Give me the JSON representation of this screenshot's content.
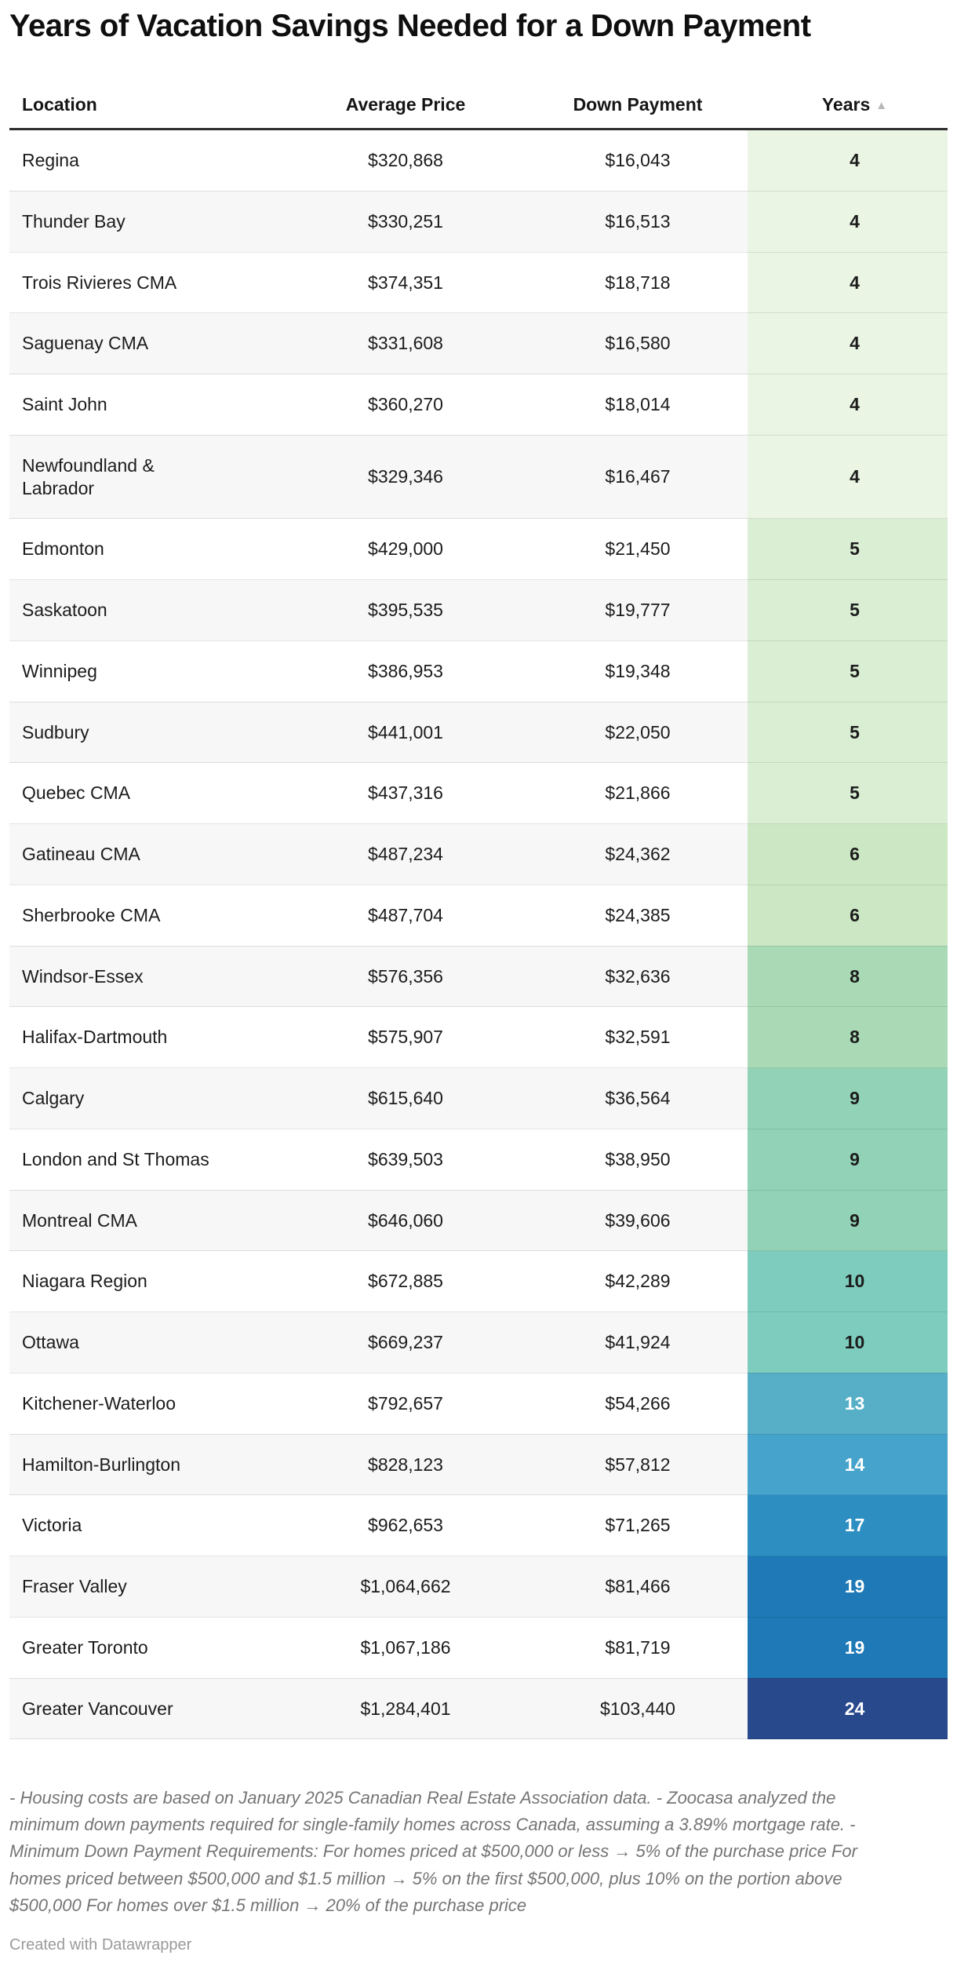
{
  "title": "Years of Vacation Savings Needed for a Down Payment",
  "chart_data": {
    "type": "table",
    "title": "Years of Vacation Savings Needed for a Down Payment",
    "columns": [
      "Location",
      "Average Price",
      "Down Payment",
      "Years"
    ],
    "sort": {
      "column": "Years",
      "direction": "ascending",
      "indicator": "▲"
    },
    "years_color_scale": {
      "4": "#eaf5e4",
      "5": "#d9eed3",
      "6": "#cbe7c3",
      "8": "#a9dab5",
      "9": "#92d2b7",
      "10": "#7eccbe",
      "13": "#56afc6",
      "14": "#46a3cb",
      "17": "#2d8ec2",
      "19": "#1e79b6",
      "24": "#28498c"
    },
    "rows": [
      {
        "location": "Regina",
        "average_price": "$320,868",
        "down_payment": "$16,043",
        "years": "4",
        "color": "#eaf5e4",
        "text": "#1c1c1c"
      },
      {
        "location": "Thunder Bay",
        "average_price": "$330,251",
        "down_payment": "$16,513",
        "years": "4",
        "color": "#eaf5e4",
        "text": "#1c1c1c"
      },
      {
        "location": "Trois Rivieres CMA",
        "average_price": "$374,351",
        "down_payment": "$18,718",
        "years": "4",
        "color": "#eaf5e4",
        "text": "#1c1c1c"
      },
      {
        "location": "Saguenay CMA",
        "average_price": "$331,608",
        "down_payment": "$16,580",
        "years": "4",
        "color": "#eaf5e4",
        "text": "#1c1c1c"
      },
      {
        "location": "Saint John",
        "average_price": "$360,270",
        "down_payment": "$18,014",
        "years": "4",
        "color": "#eaf5e4",
        "text": "#1c1c1c"
      },
      {
        "location": "Newfoundland & Labrador",
        "average_price": "$329,346",
        "down_payment": "$16,467",
        "years": "4",
        "color": "#eaf5e4",
        "text": "#1c1c1c"
      },
      {
        "location": "Edmonton",
        "average_price": "$429,000",
        "down_payment": "$21,450",
        "years": "5",
        "color": "#d9eed3",
        "text": "#1c1c1c"
      },
      {
        "location": "Saskatoon",
        "average_price": "$395,535",
        "down_payment": "$19,777",
        "years": "5",
        "color": "#d9eed3",
        "text": "#1c1c1c"
      },
      {
        "location": "Winnipeg",
        "average_price": "$386,953",
        "down_payment": "$19,348",
        "years": "5",
        "color": "#d9eed3",
        "text": "#1c1c1c"
      },
      {
        "location": "Sudbury",
        "average_price": "$441,001",
        "down_payment": "$22,050",
        "years": "5",
        "color": "#d9eed3",
        "text": "#1c1c1c"
      },
      {
        "location": "Quebec CMA",
        "average_price": "$437,316",
        "down_payment": "$21,866",
        "years": "5",
        "color": "#d9eed3",
        "text": "#1c1c1c"
      },
      {
        "location": "Gatineau CMA",
        "average_price": "$487,234",
        "down_payment": "$24,362",
        "years": "6",
        "color": "#cbe7c3",
        "text": "#1c1c1c"
      },
      {
        "location": "Sherbrooke CMA",
        "average_price": "$487,704",
        "down_payment": "$24,385",
        "years": "6",
        "color": "#cbe7c3",
        "text": "#1c1c1c"
      },
      {
        "location": "Windsor-Essex",
        "average_price": "$576,356",
        "down_payment": "$32,636",
        "years": "8",
        "color": "#a9dab5",
        "text": "#1c1c1c"
      },
      {
        "location": "Halifax-Dartmouth",
        "average_price": "$575,907",
        "down_payment": "$32,591",
        "years": "8",
        "color": "#a9dab5",
        "text": "#1c1c1c"
      },
      {
        "location": "Calgary",
        "average_price": "$615,640",
        "down_payment": "$36,564",
        "years": "9",
        "color": "#92d2b7",
        "text": "#1c1c1c"
      },
      {
        "location": "London and St Thomas",
        "average_price": "$639,503",
        "down_payment": "$38,950",
        "years": "9",
        "color": "#92d2b7",
        "text": "#1c1c1c"
      },
      {
        "location": "Montreal CMA",
        "average_price": "$646,060",
        "down_payment": "$39,606",
        "years": "9",
        "color": "#92d2b7",
        "text": "#1c1c1c"
      },
      {
        "location": "Niagara Region",
        "average_price": "$672,885",
        "down_payment": "$42,289",
        "years": "10",
        "color": "#7eccbe",
        "text": "#1c1c1c"
      },
      {
        "location": "Ottawa",
        "average_price": "$669,237",
        "down_payment": "$41,924",
        "years": "10",
        "color": "#7eccbe",
        "text": "#1c1c1c"
      },
      {
        "location": "Kitchener-Waterloo",
        "average_price": "$792,657",
        "down_payment": "$54,266",
        "years": "13",
        "color": "#56afc6",
        "text": "#ffffff"
      },
      {
        "location": "Hamilton-Burlington",
        "average_price": "$828,123",
        "down_payment": "$57,812",
        "years": "14",
        "color": "#46a3cb",
        "text": "#ffffff"
      },
      {
        "location": "Victoria",
        "average_price": "$962,653",
        "down_payment": "$71,265",
        "years": "17",
        "color": "#2d8ec2",
        "text": "#ffffff"
      },
      {
        "location": "Fraser Valley",
        "average_price": "$1,064,662",
        "down_payment": "$81,466",
        "years": "19",
        "color": "#1e79b6",
        "text": "#ffffff"
      },
      {
        "location": "Greater Toronto",
        "average_price": "$1,067,186",
        "down_payment": "$81,719",
        "years": "19",
        "color": "#1e79b6",
        "text": "#ffffff"
      },
      {
        "location": "Greater Vancouver",
        "average_price": "$1,284,401",
        "down_payment": "$103,440",
        "years": "24",
        "color": "#28498c",
        "text": "#ffffff"
      }
    ]
  },
  "header": {
    "location": "Location",
    "average_price": "Average Price",
    "down_payment": "Down Payment",
    "years": "Years",
    "sort_indicator": "▲"
  },
  "footer": {
    "notes": "- Housing costs are based on January 2025 Canadian Real Estate Association data. - Zoocasa analyzed the minimum down payments required for single-family homes across Canada, assuming a 3.89% mortgage rate. - Minimum Down Payment Requirements: For homes priced at $500,000 or less → 5% of the purchase price For homes priced between $500,000 and $1.5 million → 5% on the first $500,000, plus 10% on the portion above $500,000 For homes over $1.5 million → 20% of the purchase price",
    "attribution": "Created with Datawrapper"
  }
}
